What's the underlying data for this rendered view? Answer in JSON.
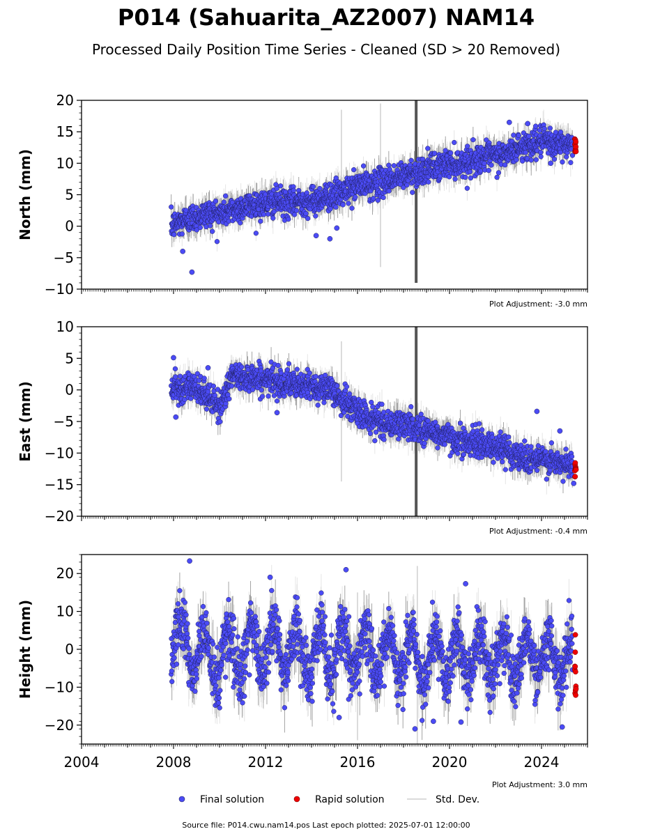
{
  "figure": {
    "title": "P014 (Sahuarita_AZ2007) NAM14",
    "subtitle": "Processed Daily Position Time Series - Cleaned (SD > 20 Removed)",
    "source_note": "Source file: P014.cwu.nam14.pos  Last epoch plotted: 2025-07-01 12:00:00"
  },
  "legend": {
    "final_label": "Final solution",
    "rapid_label": "Rapid solution",
    "std_label": "Std. Dev."
  },
  "colors": {
    "final": "#4b4bf5",
    "rapid": "#ee0000",
    "std_light": "#cfcfcf",
    "std_dark": "#555555",
    "outline": "#1f1f5e"
  },
  "chart_data": [
    {
      "type": "scatter",
      "panel": "north",
      "ylabel": "North (mm)",
      "ylim": [
        -10,
        20
      ],
      "yticks": [
        -10,
        -5,
        0,
        5,
        10,
        15,
        20
      ],
      "xlim": [
        2004,
        2026
      ],
      "adjustment": "Plot Adjustment: -3.0 mm",
      "series": [
        {
          "name": "Final solution",
          "x": [
            2007.9,
            2008.5,
            2009.0,
            2009.5,
            2010.0,
            2010.5,
            2011.0,
            2011.5,
            2012.0,
            2012.5,
            2013.0,
            2013.5,
            2014.0,
            2014.5,
            2015.0,
            2015.5,
            2016.0,
            2016.5,
            2017.0,
            2017.5,
            2018.0,
            2018.5,
            2019.0,
            2019.5,
            2020.0,
            2020.5,
            2021.0,
            2021.5,
            2022.0,
            2022.5,
            2023.0,
            2023.5,
            2024.0,
            2024.5,
            2025.0,
            2025.35
          ],
          "y": [
            0.0,
            1.0,
            1.5,
            2.0,
            2.0,
            2.5,
            3.0,
            3.5,
            3.5,
            4.0,
            3.5,
            4.0,
            4.0,
            4.5,
            5.0,
            5.5,
            6.5,
            6.5,
            7.0,
            7.5,
            8.0,
            8.5,
            9.0,
            9.5,
            10.0,
            10.0,
            10.5,
            11.0,
            11.0,
            11.5,
            12.5,
            13.0,
            13.5,
            13.0,
            13.0,
            13.0
          ]
        },
        {
          "name": "Rapid solution",
          "x": [
            2025.45,
            2025.5
          ],
          "y": [
            13.0,
            12.5
          ]
        }
      ],
      "outliers": [
        [
          2008.8,
          -7.3
        ],
        [
          2008.4,
          -4.0
        ],
        [
          2014.2,
          -1.5
        ],
        [
          2014.8,
          -2.0
        ],
        [
          2015.1,
          -0.3
        ],
        [
          2024.4,
          10.0
        ],
        [
          2022.6,
          16.5
        ],
        [
          2023.4,
          16.3
        ]
      ],
      "spikes": [
        [
          2015.3,
          18.5,
          2.0
        ],
        [
          2017.0,
          19.5,
          -6.5
        ],
        [
          2018.55,
          20,
          -9.0
        ]
      ]
    },
    {
      "type": "scatter",
      "panel": "east",
      "ylabel": "East (mm)",
      "ylim": [
        -20,
        10
      ],
      "yticks": [
        -20,
        -15,
        -10,
        -5,
        0,
        5,
        10
      ],
      "xlim": [
        2004,
        2026
      ],
      "adjustment": "Plot Adjustment: -0.4 mm",
      "series": [
        {
          "name": "Final solution",
          "x": [
            2007.9,
            2008.5,
            2009.0,
            2009.5,
            2010.0,
            2010.5,
            2011.0,
            2011.5,
            2012.0,
            2012.5,
            2013.0,
            2013.5,
            2014.0,
            2014.5,
            2015.0,
            2015.5,
            2016.0,
            2016.5,
            2017.0,
            2017.5,
            2018.0,
            2018.5,
            2019.0,
            2019.5,
            2020.0,
            2020.5,
            2021.0,
            2021.5,
            2022.0,
            2022.5,
            2023.0,
            2023.5,
            2024.0,
            2024.5,
            2025.0,
            2025.35
          ],
          "y": [
            0.5,
            0.5,
            0.0,
            -1.0,
            -3.0,
            2.0,
            2.0,
            2.0,
            1.5,
            1.5,
            1.0,
            0.5,
            0.5,
            0.5,
            -0.5,
            -2.0,
            -3.5,
            -4.5,
            -5.0,
            -5.5,
            -5.5,
            -6.0,
            -6.5,
            -7.0,
            -7.5,
            -8.0,
            -8.5,
            -8.5,
            -9.0,
            -9.5,
            -10.5,
            -11.0,
            -11.0,
            -11.5,
            -12.0,
            -12.0
          ]
        },
        {
          "name": "Rapid solution",
          "x": [
            2025.45,
            2025.5
          ],
          "y": [
            -12.5,
            -13.0
          ]
        }
      ],
      "outliers": [
        [
          2008.0,
          5.1
        ],
        [
          2008.1,
          -4.3
        ],
        [
          2009.5,
          3.5
        ],
        [
          2012.5,
          -3.6
        ],
        [
          2023.8,
          -3.4
        ],
        [
          2024.8,
          -6.5
        ],
        [
          2025.4,
          -14.8
        ]
      ],
      "spikes": [
        [
          2015.3,
          7.7,
          -14.5
        ],
        [
          2018.55,
          10,
          -20
        ]
      ]
    },
    {
      "type": "scatter",
      "panel": "height",
      "ylabel": "Height (mm)",
      "ylim": [
        -25,
        25
      ],
      "yticks": [
        -20,
        -10,
        0,
        10,
        20
      ],
      "xlim": [
        2004,
        2026
      ],
      "xticks": [
        2004,
        2008,
        2012,
        2016,
        2020,
        2024
      ],
      "adjustment": "Plot Adjustment: 3.0 mm",
      "series": [
        {
          "name": "Final solution",
          "x": [
            2007.9,
            2008.5,
            2009.0,
            2009.5,
            2010.0,
            2010.5,
            2011.0,
            2011.5,
            2012.0,
            2012.5,
            2013.0,
            2013.5,
            2014.0,
            2014.5,
            2015.0,
            2015.5,
            2016.0,
            2016.5,
            2017.0,
            2017.5,
            2018.0,
            2018.5,
            2019.0,
            2019.5,
            2020.0,
            2020.5,
            2021.0,
            2021.5,
            2022.0,
            2022.5,
            2023.0,
            2023.5,
            2024.0,
            2024.5,
            2025.0,
            2025.35
          ],
          "y": [
            -2.0,
            6.0,
            -6.0,
            3.0,
            -8.0,
            5.0,
            -7.0,
            6.0,
            -6.0,
            5.0,
            -5.0,
            4.0,
            -6.0,
            4.0,
            -6.0,
            5.0,
            -5.0,
            4.0,
            -5.0,
            3.0,
            -6.0,
            2.0,
            -8.0,
            3.0,
            -7.0,
            2.0,
            -6.0,
            1.0,
            -6.0,
            1.0,
            -6.0,
            1.0,
            -5.0,
            0.0,
            -4.0,
            -2.0
          ]
        },
        {
          "name": "Rapid solution",
          "x": [
            2025.45,
            2025.5
          ],
          "y": [
            -4.0,
            -8.0
          ]
        }
      ],
      "outliers": [
        [
          2008.7,
          23.3
        ],
        [
          2015.5,
          21.0
        ],
        [
          2012.2,
          19.0
        ],
        [
          2020.7,
          17.3
        ],
        [
          2015.2,
          -18.0
        ],
        [
          2019.3,
          -19.0
        ],
        [
          2020.5,
          -19.2
        ],
        [
          2024.9,
          -20.5
        ],
        [
          2018.5,
          -21.0
        ]
      ],
      "spikes": [
        [
          2018.6,
          22.0,
          -25.0
        ],
        [
          2016.0,
          15.0,
          -24.0
        ]
      ]
    }
  ]
}
